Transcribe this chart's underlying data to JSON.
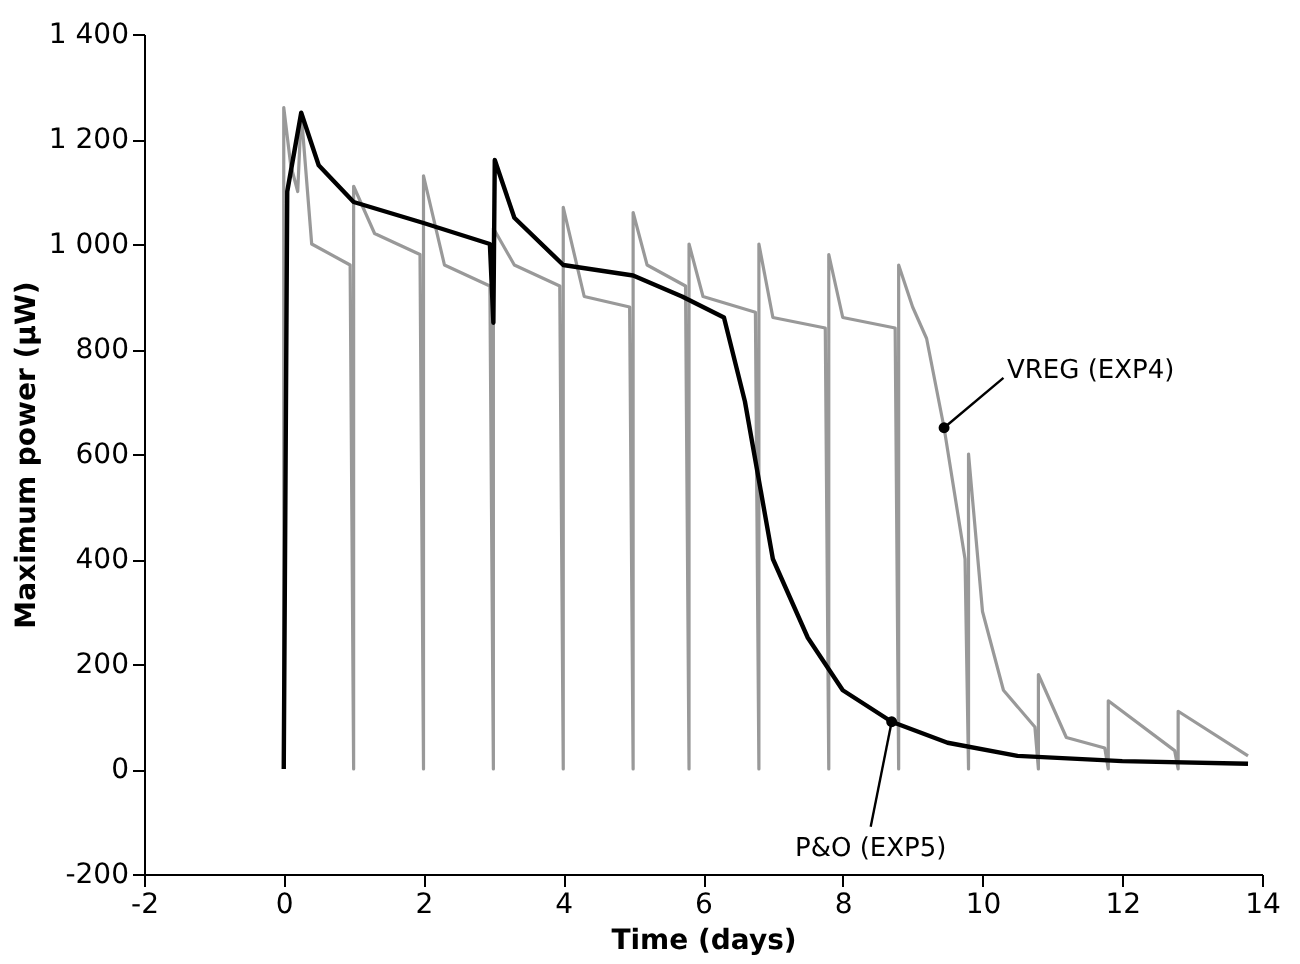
{
  "chart_data": {
    "type": "line",
    "xlabel": "Time (days)",
    "ylabel": "Maximum power (μW)",
    "xlim": [
      -2,
      14
    ],
    "ylim": [
      -200,
      1400
    ],
    "xticks": [
      -2,
      0,
      2,
      4,
      6,
      8,
      10,
      12,
      14
    ],
    "yticks": [
      -200,
      0,
      200,
      400,
      600,
      800,
      {
        "value": 1000,
        "label": "1 000"
      },
      {
        "value": 1200,
        "label": "1 200"
      },
      {
        "value": 1400,
        "label": "1 400"
      }
    ],
    "grid": false,
    "marker": "none",
    "line_style": "solid",
    "series": [
      {
        "name": "VREG (EXP4)",
        "color": "#999999",
        "x": [
          0,
          0,
          0.1,
          0.2,
          0.25,
          0.4,
          0.95,
          1,
          1,
          1.3,
          1.95,
          2,
          2,
          2.3,
          2.95,
          3,
          3,
          3.3,
          3.95,
          4,
          4,
          4.3,
          4.95,
          5,
          5,
          5.2,
          5.75,
          5.8,
          5.8,
          6.0,
          6.75,
          6.8,
          6.8,
          7.0,
          7.75,
          7.8,
          7.8,
          8.0,
          8.75,
          8.8,
          8.8,
          9.0,
          9.2,
          9.45,
          9.75,
          9.8,
          9.8,
          10.0,
          10.3,
          10.75,
          10.8,
          10.8,
          11.2,
          11.75,
          11.8,
          11.8,
          12.75,
          12.8,
          12.8,
          13.8
        ],
        "values": [
          0,
          1260,
          1150,
          1100,
          1250,
          1000,
          960,
          0,
          1110,
          1020,
          980,
          0,
          1130,
          960,
          920,
          0,
          1030,
          960,
          920,
          0,
          1070,
          900,
          880,
          0,
          1060,
          960,
          920,
          0,
          1000,
          900,
          870,
          0,
          1000,
          860,
          840,
          0,
          980,
          860,
          840,
          0,
          960,
          880,
          820,
          650,
          400,
          0,
          600,
          300,
          150,
          80,
          0,
          180,
          60,
          40,
          0,
          130,
          35,
          0,
          110,
          25
        ]
      },
      {
        "name": "P&O (EXP5)",
        "color": "#000000",
        "x": [
          0,
          0.05,
          0.25,
          0.5,
          1.0,
          2.0,
          2.95,
          3.0,
          3.02,
          3.3,
          4.0,
          5.0,
          5.7,
          6.3,
          6.6,
          7.0,
          7.5,
          8.0,
          8.7,
          9.5,
          10.5,
          12.0,
          13.8
        ],
        "values": [
          0,
          1100,
          1250,
          1150,
          1080,
          1040,
          1000,
          850,
          1160,
          1050,
          960,
          940,
          900,
          860,
          700,
          400,
          250,
          150,
          90,
          50,
          25,
          15,
          10
        ]
      }
    ]
  }
}
